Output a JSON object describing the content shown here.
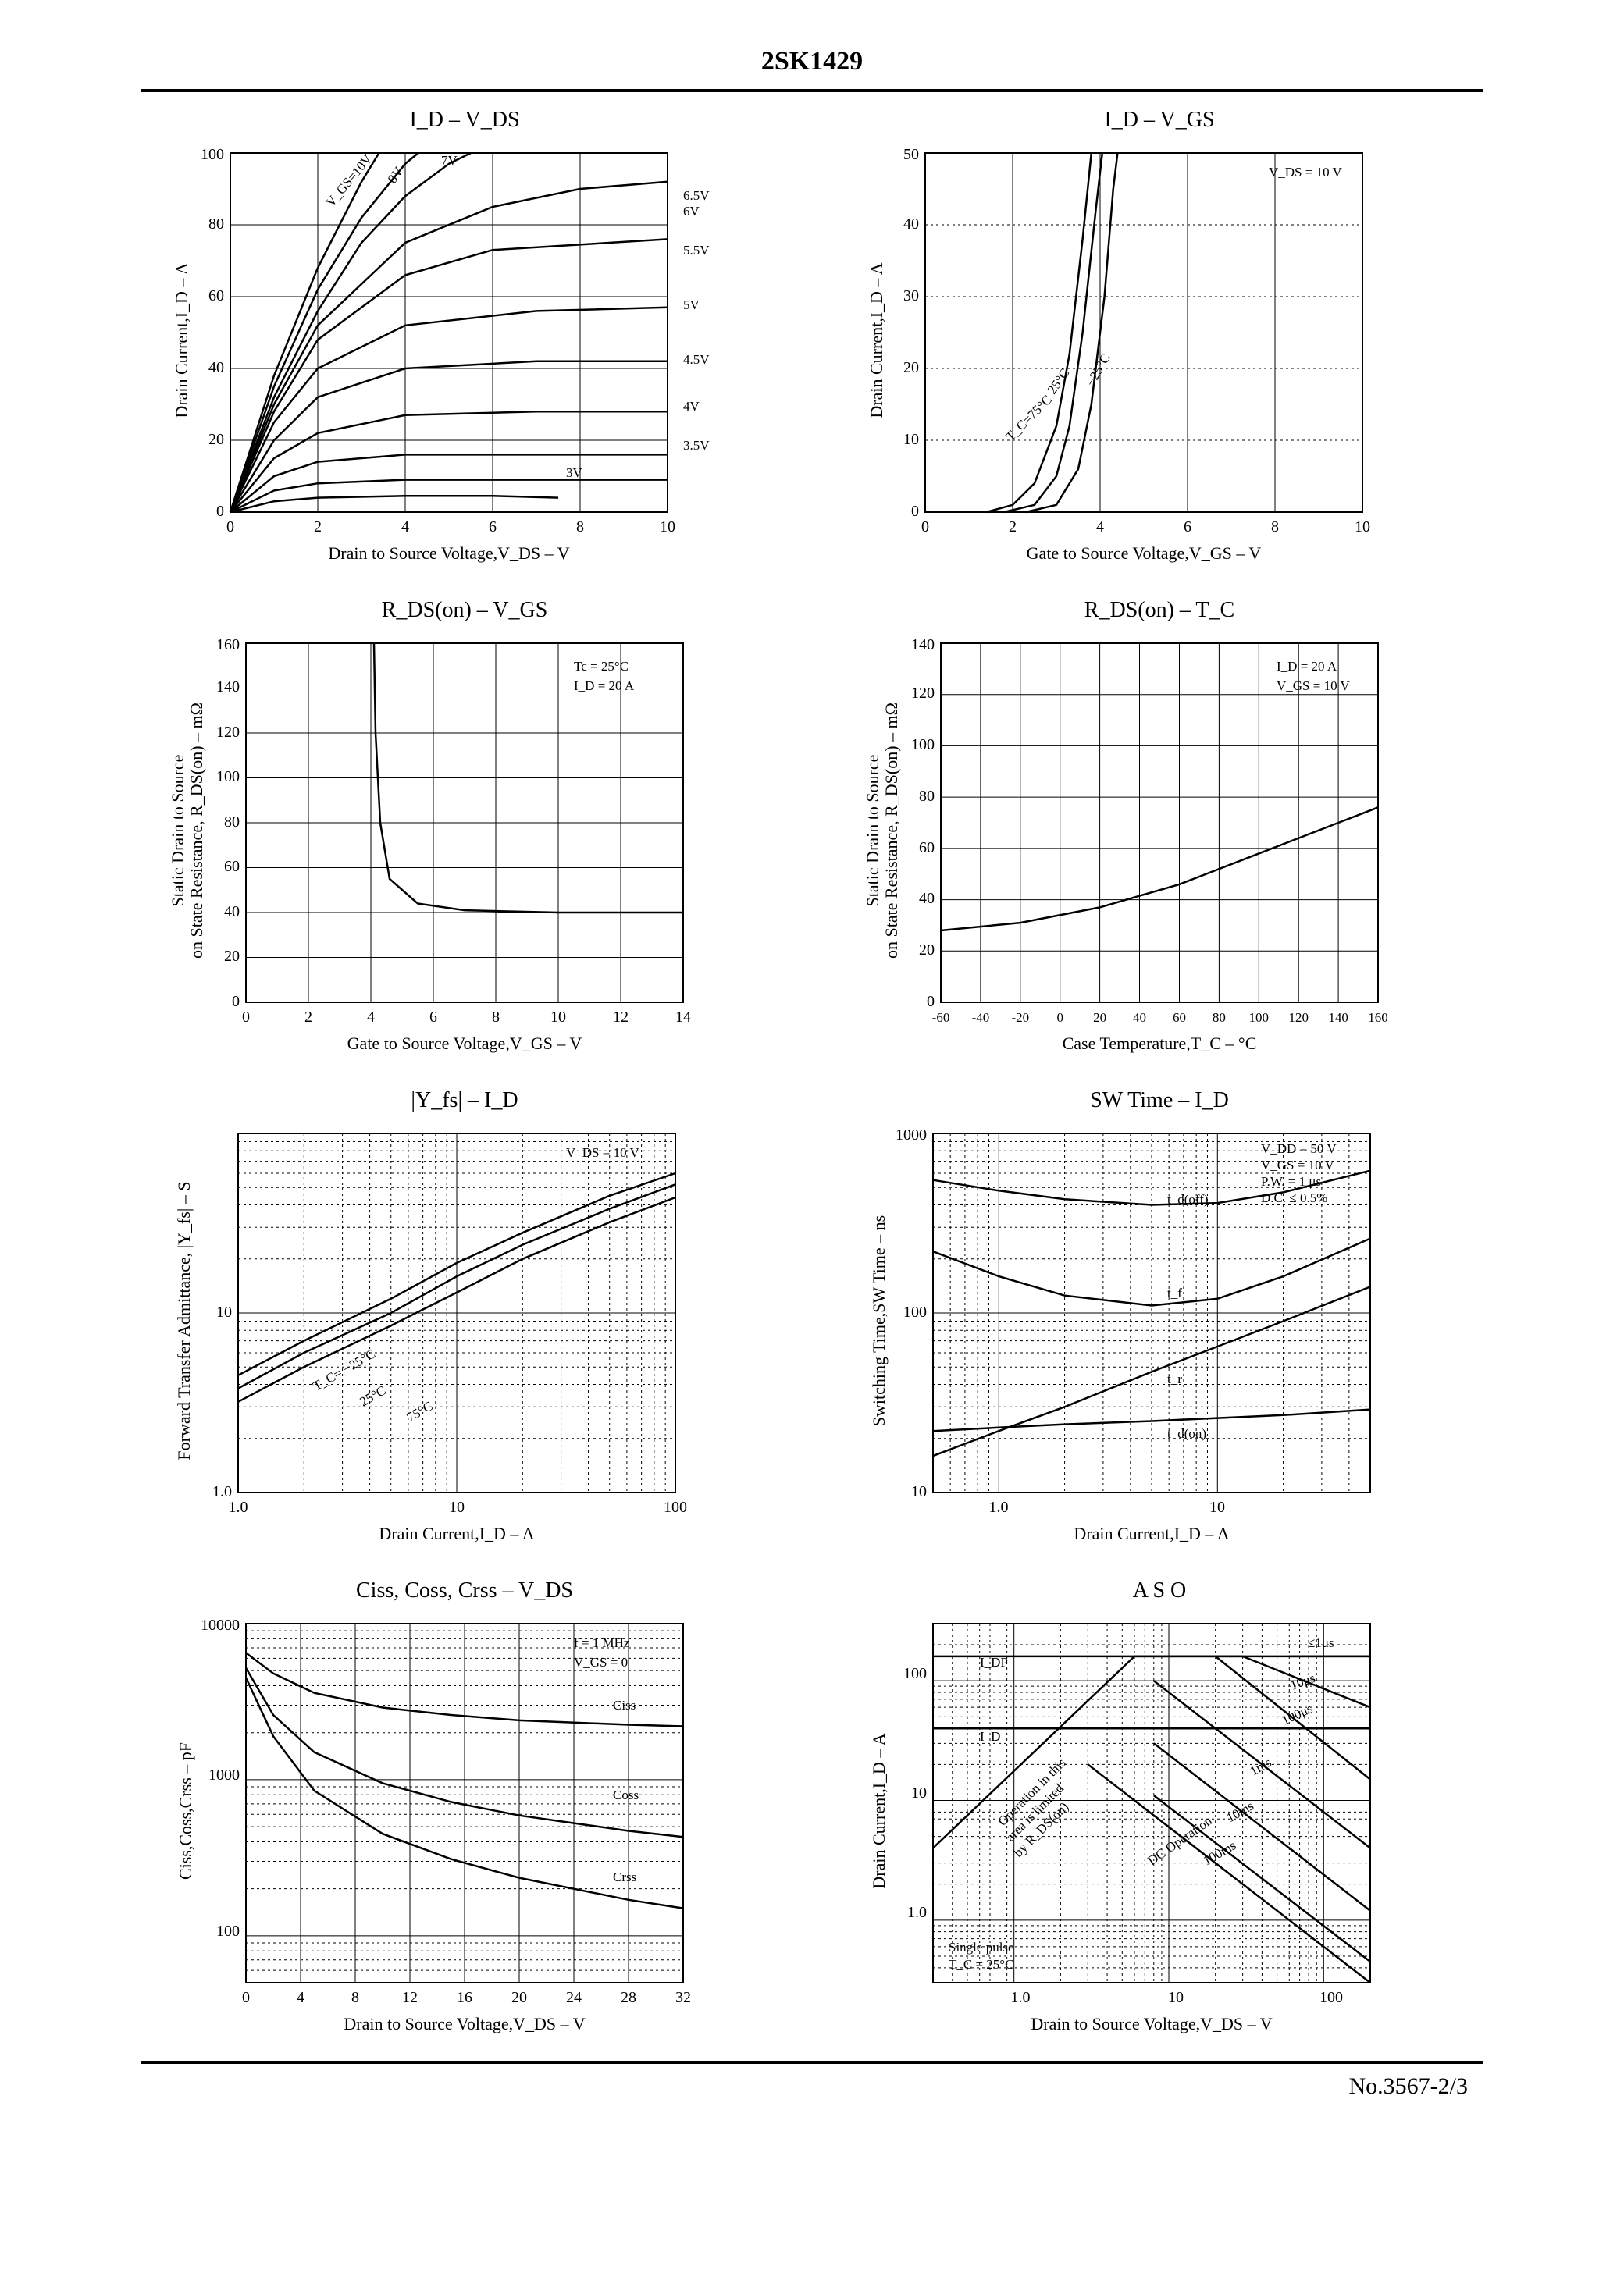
{
  "header": {
    "part_number": "2SK1429"
  },
  "footer": {
    "page_ref": "No.3567-2/3"
  },
  "common": {
    "fg": "#000000",
    "bg": "#ffffff",
    "font_family": "Times New Roman",
    "axis_stroke_width": 2,
    "curve_stroke_width": 2.5,
    "title_fontsize": 28,
    "label_fontsize": 22,
    "tick_fontsize": 20
  },
  "charts": {
    "id_vds": {
      "type": "line",
      "title": "I_D   –   V_DS",
      "xlabel": "Drain to Source Voltage,V_DS – V",
      "ylabel": "Drain Current,I_D – A",
      "xlim": [
        0,
        10
      ],
      "ylim": [
        0,
        100
      ],
      "xtick_step": 2,
      "ytick_step": 20,
      "annotations": [
        "V_GS=10V",
        "8V",
        "7V",
        "6.5V",
        "6V",
        "5.5V",
        "5V",
        "4.5V",
        "4V",
        "3.5V",
        "3V"
      ],
      "series": [
        {
          "label": "3V",
          "pts": [
            [
              0,
              0
            ],
            [
              1,
              3
            ],
            [
              2,
              4
            ],
            [
              4,
              4.5
            ],
            [
              6,
              4.5
            ],
            [
              7.5,
              4
            ]
          ]
        },
        {
          "label": "3.5V",
          "pts": [
            [
              0,
              0
            ],
            [
              1,
              6
            ],
            [
              2,
              8
            ],
            [
              4,
              9
            ],
            [
              8,
              9
            ],
            [
              10,
              9
            ]
          ]
        },
        {
          "label": "4V",
          "pts": [
            [
              0,
              0
            ],
            [
              1,
              10
            ],
            [
              2,
              14
            ],
            [
              4,
              16
            ],
            [
              8,
              16
            ],
            [
              10,
              16
            ]
          ]
        },
        {
          "label": "4.5V",
          "pts": [
            [
              0,
              0
            ],
            [
              1,
              15
            ],
            [
              2,
              22
            ],
            [
              4,
              27
            ],
            [
              7,
              28
            ],
            [
              10,
              28
            ]
          ]
        },
        {
          "label": "5V",
          "pts": [
            [
              0,
              0
            ],
            [
              1,
              20
            ],
            [
              2,
              32
            ],
            [
              4,
              40
            ],
            [
              7,
              42
            ],
            [
              10,
              42
            ]
          ]
        },
        {
          "label": "5.5V",
          "pts": [
            [
              0,
              0
            ],
            [
              1,
              25
            ],
            [
              2,
              40
            ],
            [
              4,
              52
            ],
            [
              7,
              56
            ],
            [
              10,
              57
            ]
          ]
        },
        {
          "label": "6V",
          "pts": [
            [
              0,
              0
            ],
            [
              1,
              28
            ],
            [
              2,
              48
            ],
            [
              4,
              66
            ],
            [
              6,
              73
            ],
            [
              10,
              76
            ]
          ]
        },
        {
          "label": "6.5V",
          "pts": [
            [
              0,
              0
            ],
            [
              1,
              30
            ],
            [
              2,
              52
            ],
            [
              4,
              75
            ],
            [
              6,
              85
            ],
            [
              8,
              90
            ],
            [
              10,
              92
            ]
          ]
        },
        {
          "label": "7V",
          "pts": [
            [
              0,
              0
            ],
            [
              1,
              32
            ],
            [
              2,
              56
            ],
            [
              3,
              75
            ],
            [
              4,
              88
            ],
            [
              5,
              97
            ],
            [
              5.5,
              100
            ]
          ]
        },
        {
          "label": "8V",
          "pts": [
            [
              0,
              0
            ],
            [
              1,
              35
            ],
            [
              2,
              62
            ],
            [
              3,
              82
            ],
            [
              4,
              97
            ],
            [
              4.3,
              100
            ]
          ]
        },
        {
          "label": "10V",
          "pts": [
            [
              0,
              0
            ],
            [
              1,
              38
            ],
            [
              2,
              68
            ],
            [
              3,
              92
            ],
            [
              3.4,
              100
            ]
          ]
        }
      ]
    },
    "id_vgs": {
      "type": "line",
      "title": "I_D   –   V_GS",
      "xlabel": "Gate to Source Voltage,V_GS – V",
      "ylabel": "Drain Current,I_D – A",
      "xlim": [
        0,
        10
      ],
      "ylim": [
        0,
        50
      ],
      "xtick_step": 2,
      "ytick_step": 10,
      "annotations": [
        "V_DS = 10 V",
        "T_C=75°C",
        "25°C",
        "−25°C"
      ],
      "series": [
        {
          "label": "75°C",
          "pts": [
            [
              1.4,
              0
            ],
            [
              2.0,
              1
            ],
            [
              2.5,
              4
            ],
            [
              3.0,
              12
            ],
            [
              3.3,
              22
            ],
            [
              3.6,
              38
            ],
            [
              3.8,
              50
            ]
          ]
        },
        {
          "label": "25°C",
          "pts": [
            [
              1.8,
              0
            ],
            [
              2.5,
              1
            ],
            [
              3.0,
              5
            ],
            [
              3.3,
              12
            ],
            [
              3.6,
              25
            ],
            [
              3.9,
              42
            ],
            [
              4.05,
              50
            ]
          ]
        },
        {
          "label": "-25°C",
          "pts": [
            [
              2.3,
              0
            ],
            [
              3.0,
              1
            ],
            [
              3.5,
              6
            ],
            [
              3.8,
              15
            ],
            [
              4.1,
              30
            ],
            [
              4.3,
              45
            ],
            [
              4.4,
              50
            ]
          ]
        }
      ]
    },
    "rds_vgs": {
      "type": "line",
      "title": "R_DS(on)   –   V_GS",
      "xlabel": "Gate to Source Voltage,V_GS – V",
      "ylabel": "Static Drain to Source\non State Resistance, R_DS(on) – mΩ",
      "xlim": [
        0,
        14
      ],
      "ylim": [
        0,
        160
      ],
      "xtick_step": 2,
      "ytick_step": 20,
      "annotations": [
        "Tc = 25°C",
        "I_D = 20 A"
      ],
      "series": [
        {
          "label": "rds",
          "pts": [
            [
              4.1,
              160
            ],
            [
              4.15,
              120
            ],
            [
              4.3,
              80
            ],
            [
              4.6,
              55
            ],
            [
              5.5,
              44
            ],
            [
              7,
              41
            ],
            [
              10,
              40
            ],
            [
              14,
              40
            ]
          ]
        }
      ]
    },
    "rds_tc": {
      "type": "line",
      "title": "R_DS(on)   –   T_C",
      "xlabel": "Case Temperature,T_C – °C",
      "ylabel": "Static Drain to Source\non State Resistance, R_DS(on) – mΩ",
      "xlim": [
        -60,
        160
      ],
      "ylim": [
        0,
        140
      ],
      "xtick_step": 20,
      "ytick_step": 20,
      "annotations": [
        "I_D = 20 A",
        "V_GS = 10 V"
      ],
      "series": [
        {
          "label": "rds",
          "pts": [
            [
              -60,
              28
            ],
            [
              -20,
              31
            ],
            [
              20,
              37
            ],
            [
              60,
              46
            ],
            [
              100,
              58
            ],
            [
              140,
              70
            ],
            [
              160,
              76
            ]
          ]
        }
      ]
    },
    "yfs_id": {
      "type": "line",
      "title": "|Y_fs|   –   I_D",
      "xlabel": "Drain Current,I_D – A",
      "ylabel": "Forward Transfer Admittance, |Y_fs| – S",
      "xscale": "log",
      "yscale": "log",
      "xlim": [
        1,
        100
      ],
      "ylim": [
        1,
        100
      ],
      "annotations": [
        "V_DS = 10 V",
        "T_C= −25°C",
        "25°C",
        "75°C"
      ],
      "series": [
        {
          "label": "-25°C",
          "pts": [
            [
              1,
              4.5
            ],
            [
              2,
              7
            ],
            [
              5,
              12
            ],
            [
              10,
              19
            ],
            [
              20,
              28
            ],
            [
              50,
              45
            ],
            [
              100,
              60
            ]
          ]
        },
        {
          "label": "25°C",
          "pts": [
            [
              1,
              3.8
            ],
            [
              2,
              6
            ],
            [
              5,
              10
            ],
            [
              10,
              16
            ],
            [
              20,
              24
            ],
            [
              50,
              38
            ],
            [
              100,
              52
            ]
          ]
        },
        {
          "label": "75°C",
          "pts": [
            [
              1,
              3.2
            ],
            [
              2,
              5
            ],
            [
              5,
              8.5
            ],
            [
              10,
              13
            ],
            [
              20,
              20
            ],
            [
              50,
              32
            ],
            [
              100,
              44
            ]
          ]
        }
      ]
    },
    "sw_id": {
      "type": "line",
      "title": "SW Time   –   I_D",
      "xlabel": "Drain Current,I_D – A",
      "ylabel": "Switching Time,SW Time – ns",
      "xscale": "log",
      "yscale": "log",
      "xlim": [
        0.5,
        50
      ],
      "ylim": [
        10,
        1000
      ],
      "annotations": [
        "V_DD = 50 V",
        "V_GS = 10 V",
        "P.W. = 1 μs",
        "D.C. ≤ 0.5%",
        "t_d(off)",
        "t_f",
        "t_r",
        "t_d(on)"
      ],
      "series": [
        {
          "label": "td_off",
          "pts": [
            [
              0.5,
              550
            ],
            [
              1,
              480
            ],
            [
              2,
              430
            ],
            [
              5,
              400
            ],
            [
              10,
              410
            ],
            [
              20,
              470
            ],
            [
              50,
              620
            ]
          ]
        },
        {
          "label": "tf",
          "pts": [
            [
              0.5,
              220
            ],
            [
              1,
              160
            ],
            [
              2,
              125
            ],
            [
              5,
              110
            ],
            [
              10,
              120
            ],
            [
              20,
              160
            ],
            [
              50,
              260
            ]
          ]
        },
        {
          "label": "tr",
          "pts": [
            [
              0.5,
              16
            ],
            [
              1,
              22
            ],
            [
              2,
              30
            ],
            [
              5,
              47
            ],
            [
              10,
              65
            ],
            [
              20,
              90
            ],
            [
              50,
              140
            ]
          ]
        },
        {
          "label": "td_on",
          "pts": [
            [
              0.5,
              22
            ],
            [
              1,
              23
            ],
            [
              2,
              24
            ],
            [
              5,
              25
            ],
            [
              10,
              26
            ],
            [
              20,
              27
            ],
            [
              50,
              29
            ]
          ]
        }
      ]
    },
    "ciss": {
      "type": "line",
      "title": "Ciss, Coss, Crss   –   V_DS",
      "xlabel": "Drain to Source Voltage,V_DS –  V",
      "ylabel": "Ciss,Coss,Crss   –   pF",
      "yscale": "log",
      "xlim": [
        0,
        32
      ],
      "ylim": [
        50,
        10000
      ],
      "xtick_step": 4,
      "annotations": [
        "f = 1 MHz",
        "V_GS = 0",
        "Ciss",
        "Coss",
        "Crss"
      ],
      "series": [
        {
          "label": "Ciss",
          "pts": [
            [
              0,
              6500
            ],
            [
              2,
              4800
            ],
            [
              5,
              3600
            ],
            [
              10,
              2900
            ],
            [
              15,
              2600
            ],
            [
              20,
              2400
            ],
            [
              28,
              2250
            ],
            [
              32,
              2200
            ]
          ]
        },
        {
          "label": "Coss",
          "pts": [
            [
              0,
              5200
            ],
            [
              2,
              2600
            ],
            [
              5,
              1500
            ],
            [
              10,
              950
            ],
            [
              15,
              720
            ],
            [
              20,
              590
            ],
            [
              28,
              470
            ],
            [
              32,
              430
            ]
          ]
        },
        {
          "label": "Crss",
          "pts": [
            [
              0,
              4500
            ],
            [
              2,
              1900
            ],
            [
              5,
              850
            ],
            [
              10,
              450
            ],
            [
              15,
              310
            ],
            [
              20,
              235
            ],
            [
              28,
              170
            ],
            [
              32,
              150
            ]
          ]
        }
      ]
    },
    "aso": {
      "type": "line",
      "title": "A S O",
      "xlabel": "Drain to Source Voltage,V_DS – V",
      "ylabel": "Drain Current,I_D – A",
      "xscale": "log",
      "yscale": "log",
      "xlim": [
        0.3,
        200
      ],
      "ylim": [
        0.3,
        300
      ],
      "annotations": [
        "I_DP",
        "I_D",
        "≤1μs",
        "10μs",
        "100μs",
        "1ms",
        "10ms",
        "100ms",
        "DC Operation",
        "Operation in this area is limited by R_DS(on)",
        "Single pulse",
        "T_C = 25°C"
      ],
      "series": [
        {
          "label": "IDP",
          "pts": [
            [
              0.3,
              160
            ],
            [
              200,
              160
            ]
          ]
        },
        {
          "label": "ID",
          "pts": [
            [
              0.3,
              40
            ],
            [
              200,
              40
            ]
          ]
        },
        {
          "label": "rds_limit",
          "pts": [
            [
              0.3,
              4
            ],
            [
              6,
              160
            ]
          ]
        },
        {
          "label": "1us",
          "pts": [
            [
              200,
              160
            ],
            [
              60,
              160
            ]
          ]
        },
        {
          "label": "10us",
          "pts": [
            [
              200,
              60
            ],
            [
              30,
              160
            ],
            [
              6,
              160
            ]
          ]
        },
        {
          "label": "100us",
          "pts": [
            [
              200,
              15
            ],
            [
              20,
              160
            ]
          ]
        },
        {
          "label": "1ms",
          "pts": [
            [
              200,
              4
            ],
            [
              8,
              100
            ]
          ]
        },
        {
          "label": "10ms",
          "pts": [
            [
              200,
              1.2
            ],
            [
              8,
              30
            ]
          ]
        },
        {
          "label": "100ms",
          "pts": [
            [
              200,
              0.45
            ],
            [
              8,
              11
            ]
          ]
        },
        {
          "label": "dc",
          "pts": [
            [
              200,
              0.3
            ],
            [
              10,
              6
            ],
            [
              3,
              20
            ]
          ]
        }
      ]
    }
  }
}
